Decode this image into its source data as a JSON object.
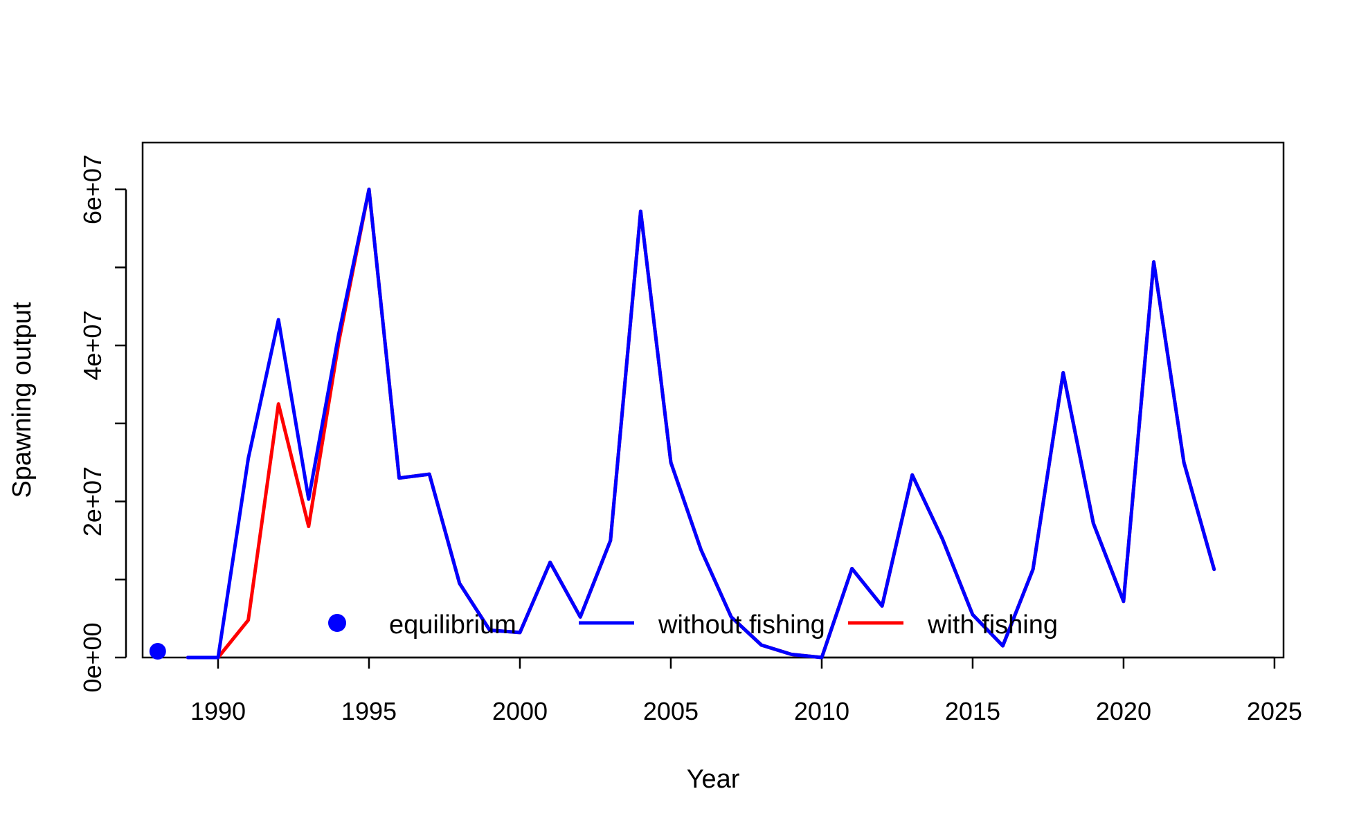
{
  "chart_data": {
    "type": "line",
    "title": "",
    "xlabel": "Year",
    "ylabel": "Spawning output",
    "xlim": [
      1987.5,
      2025.3
    ],
    "ylim": [
      0,
      66000000
    ],
    "x_ticks": [
      1990,
      1995,
      2000,
      2005,
      2010,
      2015,
      2020,
      2025
    ],
    "x_tick_labels": [
      "1990",
      "1995",
      "2000",
      "2005",
      "2010",
      "2015",
      "2020",
      "2025"
    ],
    "y_ticks": [
      0,
      10000000,
      20000000,
      30000000,
      40000000,
      50000000,
      60000000
    ],
    "y_tick_labels": [
      "0e+00",
      "",
      "2e+07",
      "",
      "4e+07",
      "",
      "6e+07"
    ],
    "grid": false,
    "legend_position": "bottom-center",
    "equilibrium": {
      "name": "equilibrium",
      "x": 1988,
      "y": 800000,
      "color": "#0000ff"
    },
    "series": [
      {
        "name": "with fishing",
        "color": "#ff0000",
        "x": [
          1989,
          1990,
          1991,
          1992,
          1993,
          1994,
          1995,
          1996,
          1997,
          1998,
          1999,
          2000,
          2001,
          2002,
          2003,
          2004,
          2005,
          2006,
          2007,
          2008,
          2009,
          2010,
          2011,
          2012,
          2013,
          2014,
          2015,
          2016,
          2017,
          2018,
          2019,
          2020,
          2021,
          2022,
          2023
        ],
        "values": [
          0,
          0,
          4800000,
          32500000,
          16800000,
          40500000,
          60000000,
          23000000,
          23500000,
          9500000,
          3500000,
          3200000,
          12200000,
          5200000,
          15000000,
          57200000,
          25000000,
          13800000,
          5200000,
          1600000,
          400000,
          0,
          11400000,
          6600000,
          23400000,
          15200000,
          5500000,
          1500000,
          11300000,
          36500000,
          17200000,
          7200000,
          50700000,
          25000000,
          11300000
        ]
      },
      {
        "name": "without fishing",
        "color": "#0000ff",
        "x": [
          1989,
          1990,
          1991,
          1992,
          1993,
          1994,
          1995,
          1996,
          1997,
          1998,
          1999,
          2000,
          2001,
          2002,
          2003,
          2004,
          2005,
          2006,
          2007,
          2008,
          2009,
          2010,
          2011,
          2012,
          2013,
          2014,
          2015,
          2016,
          2017,
          2018,
          2019,
          2020,
          2021,
          2022,
          2023
        ],
        "values": [
          0,
          0,
          25500000,
          43300000,
          20300000,
          41500000,
          60000000,
          23000000,
          23500000,
          9500000,
          3500000,
          3200000,
          12200000,
          5200000,
          15000000,
          57200000,
          25000000,
          13800000,
          5200000,
          1600000,
          400000,
          0,
          11400000,
          6600000,
          23400000,
          15200000,
          5500000,
          1500000,
          11300000,
          36500000,
          17200000,
          7200000,
          50700000,
          25000000,
          11300000
        ]
      }
    ]
  }
}
